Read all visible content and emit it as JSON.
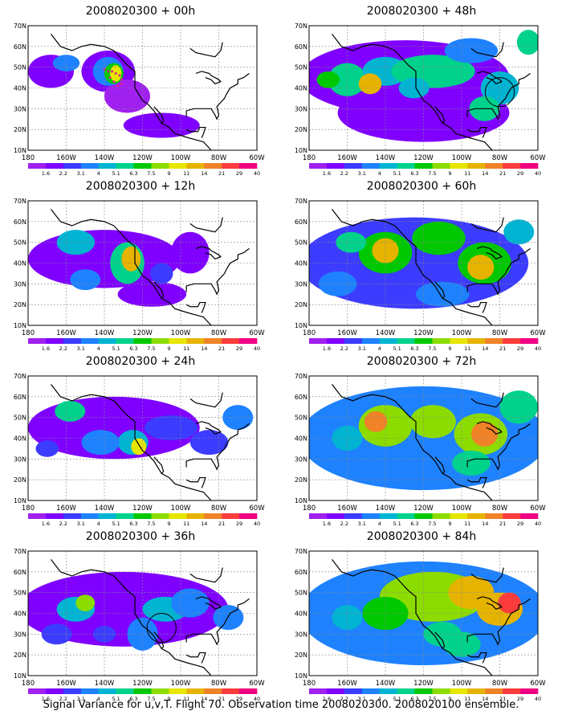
{
  "panels": [
    {
      "title": "2008020300 + 00h",
      "lead": 0
    },
    {
      "title": "2008020300 + 48h",
      "lead": 48
    },
    {
      "title": "2008020300 + 12h",
      "lead": 12
    },
    {
      "title": "2008020300 + 60h",
      "lead": 60
    },
    {
      "title": "2008020300 + 24h",
      "lead": 24
    },
    {
      "title": "2008020300 + 72h",
      "lead": 72
    },
    {
      "title": "2008020300 + 36h",
      "lead": 36
    },
    {
      "title": "2008020300 + 84h",
      "lead": 84
    }
  ],
  "lat_labels": [
    "10N",
    "20N",
    "30N",
    "40N",
    "50N",
    "60N",
    "70N"
  ],
  "lon_labels": [
    "180",
    "160W",
    "140W",
    "120W",
    "100W",
    "80W",
    "60W"
  ],
  "colorbar": {
    "labels": [
      "1.6",
      "2.2",
      "3.1",
      "4",
      "5.1",
      "6.3",
      "7.5",
      "9",
      "11",
      "14",
      "21",
      "29",
      "40"
    ],
    "colors": [
      "#a020f0",
      "#7f00ff",
      "#3c3cff",
      "#1e82ff",
      "#00b4d2",
      "#00d28c",
      "#00c800",
      "#8cdc00",
      "#e6e600",
      "#e6b400",
      "#f08228",
      "#fa3c3c",
      "#f00082"
    ]
  },
  "footer": "Signal Variance for u,v,T. Flight 70. Observation time 2008020300. 2008020100 ensemble."
}
